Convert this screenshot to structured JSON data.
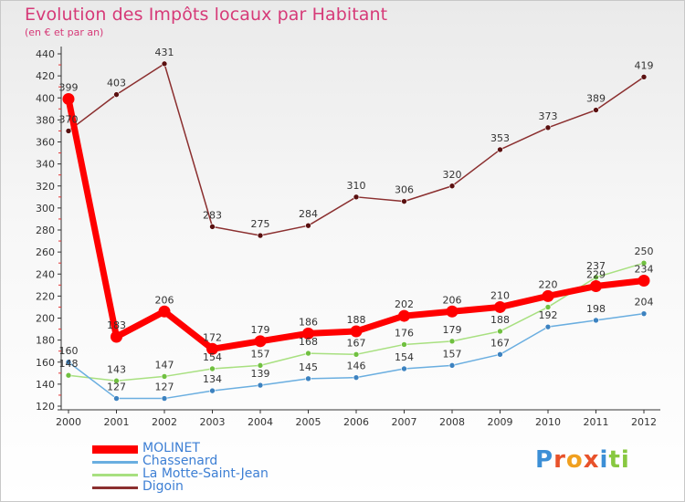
{
  "colors": {
    "title": "#d63a78",
    "axis": "#333333",
    "tick_red": "#e03030",
    "legend_text": "#3d7fd4"
  },
  "brand": {
    "text": "Proxiti",
    "letter_colors": [
      "#3c8fd6",
      "#e8522b",
      "#f0a020",
      "#e8522b",
      "#3c8fd6",
      "#88c840",
      "#88c840"
    ]
  },
  "chart_data": {
    "type": "line",
    "title": "Evolution des Impôts locaux par Habitant",
    "subtitle": "(en € et par an)",
    "xlabel": "",
    "ylabel": "",
    "categories": [
      "2000",
      "2001",
      "2002",
      "2003",
      "2004",
      "2005",
      "2006",
      "2007",
      "2008",
      "2009",
      "2010",
      "2011",
      "2012"
    ],
    "ylim": [
      120,
      440
    ],
    "yticks": [
      120,
      140,
      160,
      180,
      200,
      220,
      240,
      260,
      280,
      300,
      320,
      340,
      360,
      380,
      400,
      420,
      440
    ],
    "legend_position": "bottom-left",
    "series": [
      {
        "name": "Digoin",
        "color": "#8b2f2f",
        "marker": "#5a1010",
        "values": [
          370,
          403,
          431,
          283,
          275,
          284,
          310,
          306,
          320,
          353,
          373,
          389,
          419
        ]
      },
      {
        "name": "La Motte-Saint-Jean",
        "color": "#a8e080",
        "marker": "#70c040",
        "values": [
          148,
          143,
          147,
          154,
          157,
          168,
          167,
          176,
          179,
          188,
          210,
          237,
          250
        ]
      },
      {
        "name": "Chassenard",
        "color": "#6aaee0",
        "marker": "#3c82c0",
        "values": [
          160,
          127,
          127,
          134,
          139,
          145,
          146,
          154,
          157,
          167,
          192,
          198,
          204
        ]
      },
      {
        "name": "MOLINET",
        "color": "#ff0000",
        "marker": "#ff0000",
        "values": [
          399,
          183,
          206,
          172,
          179,
          186,
          188,
          202,
          206,
          210,
          220,
          229,
          234
        ]
      }
    ],
    "data_labels": [
      [
        "370",
        "403",
        "431",
        "283",
        "275",
        "284",
        "310",
        "306",
        "320",
        "353",
        "373",
        "389",
        "419"
      ],
      [
        "148",
        "143",
        "147",
        "154",
        "157",
        "168",
        "167",
        "176",
        "179",
        "188",
        "",
        "237",
        "250"
      ],
      [
        "160",
        "127",
        "127",
        "134",
        "139",
        "145",
        "146",
        "154",
        "157",
        "167",
        "192",
        "198",
        "204"
      ],
      [
        "399",
        "183",
        "206",
        "172",
        "179",
        "186",
        "188",
        "202",
        "206",
        "210",
        "220",
        "229",
        "234"
      ]
    ],
    "legend_order": [
      "MOLINET",
      "Chassenard",
      "La Motte-Saint-Jean",
      "Digoin"
    ]
  }
}
